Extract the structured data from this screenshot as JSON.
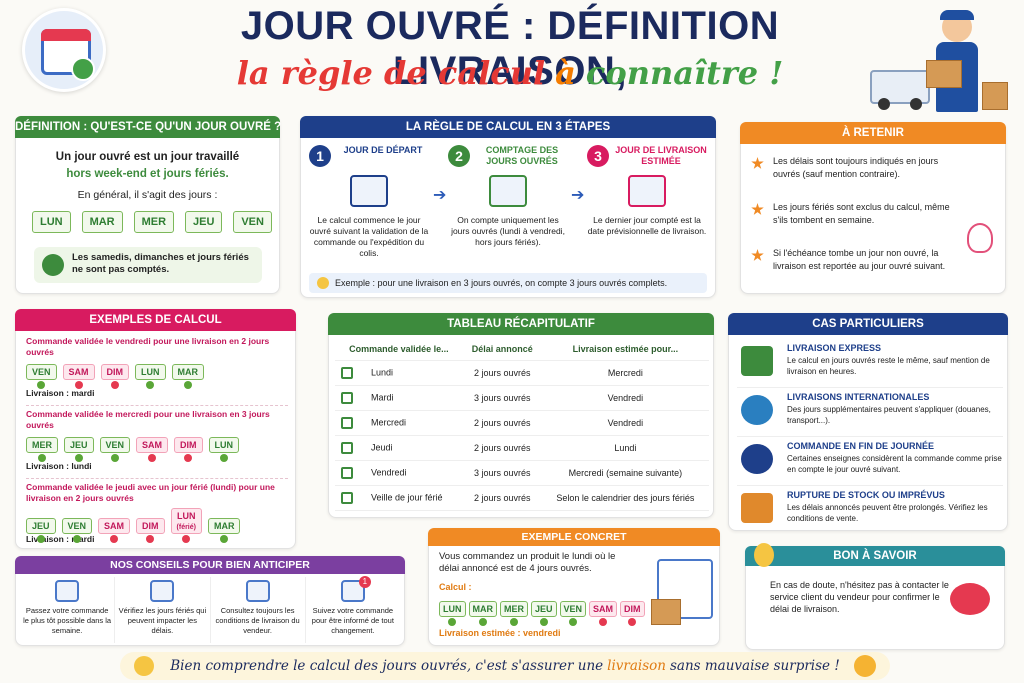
{
  "header": {
    "title": "JOUR OUVRÉ : DÉFINITION LIVRAISON,",
    "subtitle_parts": [
      "la règle de calcul",
      "à",
      "connaître !"
    ]
  },
  "definition": {
    "title": "DÉFINITION : QU'EST-CE QU'UN JOUR OUVRÉ ?",
    "text1": "Un jour ouvré est un jour travaillé",
    "text1_highlight": "hors week-end et jours fériés.",
    "text2": "En général, il s'agit des jours :",
    "days": [
      "LUN",
      "MAR",
      "MER",
      "JEU",
      "VEN"
    ],
    "note": "Les samedis, dimanches et jours fériés ne sont pas comptés."
  },
  "steps": {
    "title": "LA RÈGLE DE CALCUL EN 3 ÉTAPES",
    "items": [
      {
        "number": "1",
        "title": "JOUR DE DÉPART",
        "text": "Le calcul commence le jour ouvré suivant la validation de la commande ou l'expédition du colis."
      },
      {
        "number": "2",
        "title": "COMPTAGE DES JOURS OUVRÉS",
        "text": "On compte uniquement les jours ouvrés (lundi à vendredi, hors jours fériés)."
      },
      {
        "number": "3",
        "title": "JOUR DE LIVRAISON ESTIMÉE",
        "text": "Le dernier jour compté est la date prévisionnelle de livraison."
      }
    ],
    "example": "Exemple : pour une livraison en 3 jours ouvrés, on compte 3 jours ouvrés complets."
  },
  "retenir": {
    "title": "À RETENIR",
    "items": [
      "Les délais sont toujours indiqués en jours ouvrés (sauf mention contraire).",
      "Les jours fériés sont exclus du calcul, même s'ils tombent en semaine.",
      "Si l'échéance tombe un jour non ouvré, la livraison est reportée au jour ouvré suivant."
    ]
  },
  "examples": {
    "title": "EXEMPLES DE CALCUL",
    "items": [
      {
        "heading": "Commande validée le vendredi pour une livraison en 2 jours ouvrés",
        "days": [
          {
            "label": "VEN",
            "excluded": false
          },
          {
            "label": "SAM",
            "excluded": true
          },
          {
            "label": "DIM",
            "excluded": true
          },
          {
            "label": "LUN",
            "excluded": false
          },
          {
            "label": "MAR",
            "excluded": false
          }
        ],
        "result": "Livraison : mardi"
      },
      {
        "heading": "Commande validée le mercredi pour une livraison en 3 jours ouvrés",
        "days": [
          {
            "label": "MER",
            "excluded": false
          },
          {
            "label": "JEU",
            "excluded": false
          },
          {
            "label": "VEN",
            "excluded": false
          },
          {
            "label": "SAM",
            "excluded": true
          },
          {
            "label": "DIM",
            "excluded": true
          },
          {
            "label": "LUN",
            "excluded": false
          }
        ],
        "result": "Livraison : lundi"
      },
      {
        "heading": "Commande validée le jeudi avec un jour férié (lundi) pour une livraison en 2 jours ouvrés",
        "days": [
          {
            "label": "JEU",
            "excluded": false
          },
          {
            "label": "VEN",
            "excluded": false
          },
          {
            "label": "SAM",
            "excluded": true
          },
          {
            "label": "DIM",
            "excluded": true
          },
          {
            "label": "LUN",
            "sub": "(férié)",
            "excluded": true
          },
          {
            "label": "MAR",
            "excluded": false
          }
        ],
        "result": "Livraison : mardi"
      }
    ]
  },
  "table": {
    "title": "TABLEAU RÉCAPITULATIF",
    "columns": [
      "Commande validée le...",
      "Délai annoncé",
      "Livraison estimée pour..."
    ],
    "rows": [
      [
        "Lundi",
        "2 jours ouvrés",
        "Mercredi"
      ],
      [
        "Mardi",
        "3 jours ouvrés",
        "Vendredi"
      ],
      [
        "Mercredi",
        "2 jours ouvrés",
        "Vendredi"
      ],
      [
        "Jeudi",
        "2 jours ouvrés",
        "Lundi"
      ],
      [
        "Vendredi",
        "3 jours ouvrés",
        "Mercredi (semaine suivante)"
      ],
      [
        "Veille de jour férié",
        "2 jours ouvrés",
        "Selon le calendrier des jours fériés"
      ]
    ]
  },
  "cases": {
    "title": "CAS PARTICULIERS",
    "items": [
      {
        "title": "LIVRAISON EXPRESS",
        "text": "Le calcul en jours ouvrés reste le même, sauf mention de livraison en heures."
      },
      {
        "title": "LIVRAISONS INTERNATIONALES",
        "text": "Des jours supplémentaires peuvent s'appliquer (douanes, transport...)."
      },
      {
        "title": "COMMANDE EN FIN DE JOURNÉE",
        "text": "Certaines enseignes considèrent la commande comme prise en compte le jour ouvré suivant."
      },
      {
        "title": "RUPTURE DE STOCK OU IMPRÉVUS",
        "text": "Les délais annoncés peuvent être prolongés. Vérifiez les conditions de vente."
      }
    ]
  },
  "tips": {
    "title": "NOS CONSEILS POUR BIEN ANTICIPER",
    "items": [
      "Passez votre commande le plus tôt possible dans la semaine.",
      "Vérifiez les jours fériés qui peuvent impacter les délais.",
      "Consultez toujours les conditions de livraison du vendeur.",
      "Suivez votre commande pour être informé de tout changement."
    ],
    "badge": "1"
  },
  "concrete": {
    "title": "EXEMPLE CONCRET",
    "text": "Vous commandez un produit le lundi où le délai annoncé est de 4 jours ouvrés.",
    "calc_label": "Calcul :",
    "days": [
      {
        "label": "LUN",
        "excluded": false
      },
      {
        "label": "MAR",
        "excluded": false
      },
      {
        "label": "MER",
        "excluded": false
      },
      {
        "label": "JEU",
        "excluded": false
      },
      {
        "label": "VEN",
        "excluded": false
      },
      {
        "label": "SAM",
        "excluded": true
      },
      {
        "label": "DIM",
        "excluded": true
      }
    ],
    "result": "Livraison estimée : vendredi"
  },
  "good_to_know": {
    "title": "BON À SAVOIR",
    "text": "En cas de doute, n'hésitez pas à contacter le service client du vendeur pour confirmer le délai de livraison."
  },
  "footer": {
    "parts": [
      "Bien comprendre le calcul des jours ouvrés, c'est s'assurer une",
      "livraison",
      "sans mauvaise surprise !"
    ]
  }
}
